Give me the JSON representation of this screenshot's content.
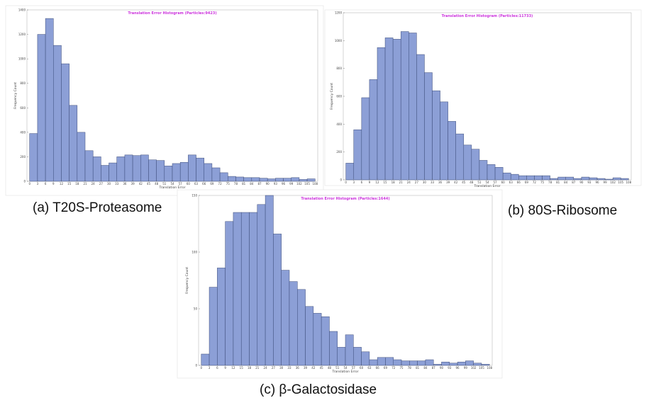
{
  "charts_meta": [
    {
      "id": "a",
      "caption": "(a) T20S-Proteasome"
    },
    {
      "id": "b",
      "caption": "(b) 80S-Ribosome"
    },
    {
      "id": "c",
      "caption": "(c) β-Galactosidase"
    }
  ],
  "colors": {
    "bar_fill": "#8c9fd6",
    "bar_stroke": "#3a4a78",
    "title": "#cc33dd",
    "frame": "#bbbbbb"
  },
  "chart_data": [
    {
      "type": "bar",
      "title": "Translation Error Histogram (Particles:9423)",
      "xlabel": "Translation Error",
      "ylabel": "Frequency Count",
      "bin_width": 3,
      "xlim": [
        -1,
        109
      ],
      "ylim": [
        0,
        1400
      ],
      "yticks": [
        0,
        200,
        400,
        600,
        800,
        1000,
        1200,
        1400
      ],
      "xticks": [
        0,
        3,
        6,
        9,
        12,
        15,
        18,
        21,
        24,
        27,
        30,
        33,
        36,
        39,
        42,
        45,
        48,
        51,
        54,
        57,
        60,
        63,
        66,
        69,
        72,
        75,
        78,
        81,
        84,
        87,
        90,
        93,
        96,
        99,
        102,
        105,
        108
      ],
      "x": [
        0,
        3,
        6,
        9,
        12,
        15,
        18,
        21,
        24,
        27,
        30,
        33,
        36,
        39,
        42,
        45,
        48,
        51,
        54,
        57,
        60,
        63,
        66,
        69,
        72,
        75,
        78,
        81,
        84,
        87,
        90,
        93,
        96,
        99,
        102,
        105
      ],
      "values": [
        390,
        1200,
        1330,
        1110,
        960,
        620,
        400,
        250,
        200,
        130,
        150,
        200,
        215,
        210,
        215,
        175,
        170,
        125,
        145,
        155,
        215,
        190,
        145,
        110,
        70,
        40,
        35,
        30,
        30,
        25,
        20,
        25,
        25,
        30,
        15,
        20
      ]
    },
    {
      "type": "bar",
      "title": "Translation Error Histogram (Particles:11733)",
      "xlabel": "Translation Error",
      "ylabel": "Frequency Count",
      "bin_width": 3,
      "xlim": [
        -1,
        109
      ],
      "ylim": [
        0,
        1200
      ],
      "yticks": [
        0,
        200,
        400,
        600,
        800,
        1000,
        1200
      ],
      "xticks": [
        0,
        3,
        6,
        9,
        12,
        15,
        18,
        21,
        24,
        27,
        30,
        33,
        36,
        39,
        42,
        45,
        48,
        51,
        54,
        57,
        60,
        63,
        66,
        69,
        72,
        75,
        78,
        81,
        84,
        87,
        90,
        93,
        96,
        99,
        102,
        105,
        108
      ],
      "x": [
        0,
        3,
        6,
        9,
        12,
        15,
        18,
        21,
        24,
        27,
        30,
        33,
        36,
        39,
        42,
        45,
        48,
        51,
        54,
        57,
        60,
        63,
        66,
        69,
        72,
        75,
        78,
        81,
        84,
        87,
        90,
        93,
        96,
        99,
        102,
        105
      ],
      "values": [
        120,
        360,
        590,
        720,
        950,
        1020,
        1010,
        1065,
        1055,
        900,
        770,
        640,
        560,
        420,
        330,
        250,
        220,
        140,
        110,
        90,
        50,
        40,
        30,
        30,
        30,
        30,
        10,
        20,
        20,
        10,
        20,
        15,
        10,
        5,
        15,
        10
      ]
    },
    {
      "type": "bar",
      "title": "Translation Error Histogram (Particles:1644)",
      "xlabel": "Translation Error",
      "ylabel": "Frequency Count",
      "bin_width": 3,
      "xlim": [
        -1,
        109
      ],
      "ylim": [
        0,
        150
      ],
      "yticks": [
        0,
        50,
        100,
        150
      ],
      "xticks": [
        0,
        3,
        6,
        9,
        12,
        15,
        18,
        21,
        24,
        27,
        30,
        33,
        36,
        39,
        42,
        45,
        48,
        51,
        54,
        57,
        60,
        63,
        66,
        69,
        72,
        75,
        78,
        81,
        84,
        87,
        90,
        93,
        96,
        99,
        102,
        105,
        108
      ],
      "x": [
        0,
        3,
        6,
        9,
        12,
        15,
        18,
        21,
        24,
        27,
        30,
        33,
        36,
        39,
        42,
        45,
        48,
        51,
        54,
        57,
        60,
        63,
        66,
        69,
        72,
        75,
        78,
        81,
        84,
        87,
        90,
        93,
        96,
        99,
        102,
        105
      ],
      "values": [
        10,
        69,
        86,
        127,
        135,
        135,
        135,
        142,
        150,
        116,
        84,
        74,
        67,
        52,
        46,
        43,
        30,
        16,
        27,
        16,
        12,
        5,
        7,
        7,
        5,
        4,
        4,
        4,
        5,
        1,
        3,
        2,
        3,
        4,
        2,
        1
      ]
    }
  ]
}
